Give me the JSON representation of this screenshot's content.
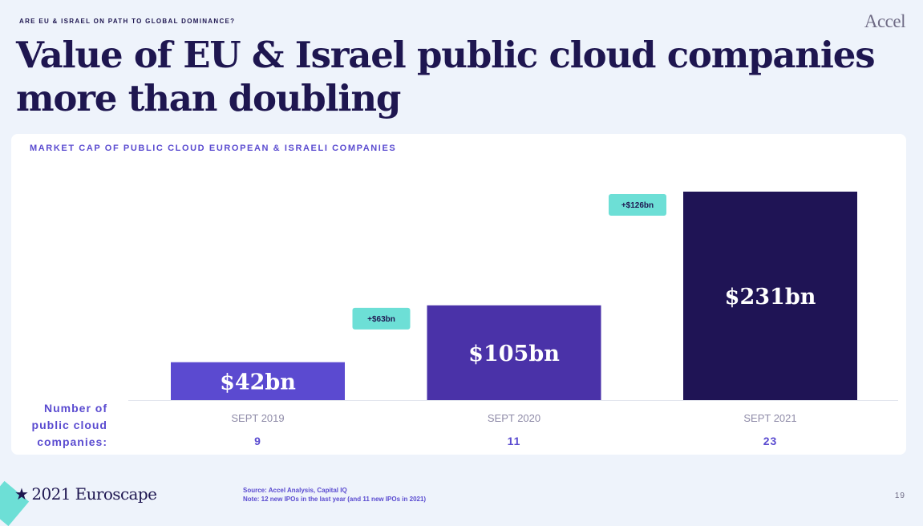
{
  "header": {
    "kicker": "ARE EU & ISRAEL ON PATH TO GLOBAL DOMINANCE?",
    "logo": "Accel",
    "title": "Value of EU & Israel public cloud companies more than doubling"
  },
  "chart_data": {
    "type": "bar",
    "title": "MARKET CAP OF PUBLIC CLOUD EUROPEAN & ISRAELI COMPANIES",
    "categories": [
      "SEPT 2019",
      "SEPT 2020",
      "SEPT 2021"
    ],
    "values": [
      42,
      105,
      231
    ],
    "unit": "$bn",
    "bar_labels": [
      "$42bn",
      "$105bn",
      "$231bn"
    ],
    "bar_colors": [
      "#5b4ad0",
      "#4a32a8",
      "#1f1455"
    ],
    "increments": [
      null,
      "+$63bn",
      "+$126bn"
    ],
    "increment_color": "#6ddfd6",
    "row_label": "Number of public cloud companies:",
    "counts": [
      "9",
      "11",
      "23"
    ],
    "ylim": [
      0,
      231
    ],
    "xlabel": "",
    "ylabel": ""
  },
  "footer": {
    "brand": "2021 Euroscape",
    "source_line1": "Source: Accel Analysis, Capital IQ",
    "source_line2": "Note: 12 new IPOs in the last year (and 11 new IPOs in 2021)",
    "page_number": "19"
  }
}
